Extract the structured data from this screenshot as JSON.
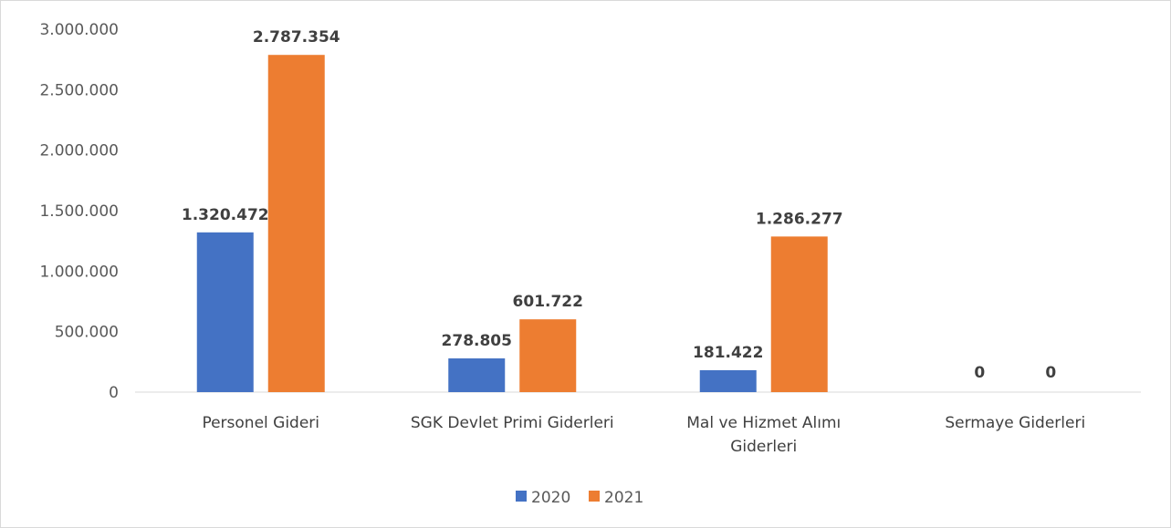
{
  "chart_data": {
    "type": "bar",
    "categories": [
      [
        "Personel Gideri"
      ],
      [
        "SGK Devlet Primi Giderleri"
      ],
      [
        "Mal ve Hizmet Alımı",
        "Giderleri"
      ],
      [
        "Sermaye Giderleri"
      ]
    ],
    "series": [
      {
        "name": "2020",
        "color": "#4472C4",
        "values": [
          1320472,
          278805,
          181422,
          0
        ],
        "labels": [
          "1.320.472",
          "278.805",
          "181.422",
          "0"
        ]
      },
      {
        "name": "2021",
        "color": "#ED7D31",
        "values": [
          2787354,
          601722,
          1286277,
          0
        ],
        "labels": [
          "2.787.354",
          "601.722",
          "1.286.277",
          "0"
        ]
      }
    ],
    "ylim": [
      0,
      3000000
    ],
    "yticks": [
      0,
      500000,
      1000000,
      1500000,
      2000000,
      2500000,
      3000000
    ],
    "ytick_labels": [
      "0",
      "500.000",
      "1.000.000",
      "1.500.000",
      "2.000.000",
      "2.500.000",
      "3.000.000"
    ],
    "grid": false,
    "legend": "bottom",
    "title": "",
    "xlabel": "",
    "ylabel": ""
  }
}
